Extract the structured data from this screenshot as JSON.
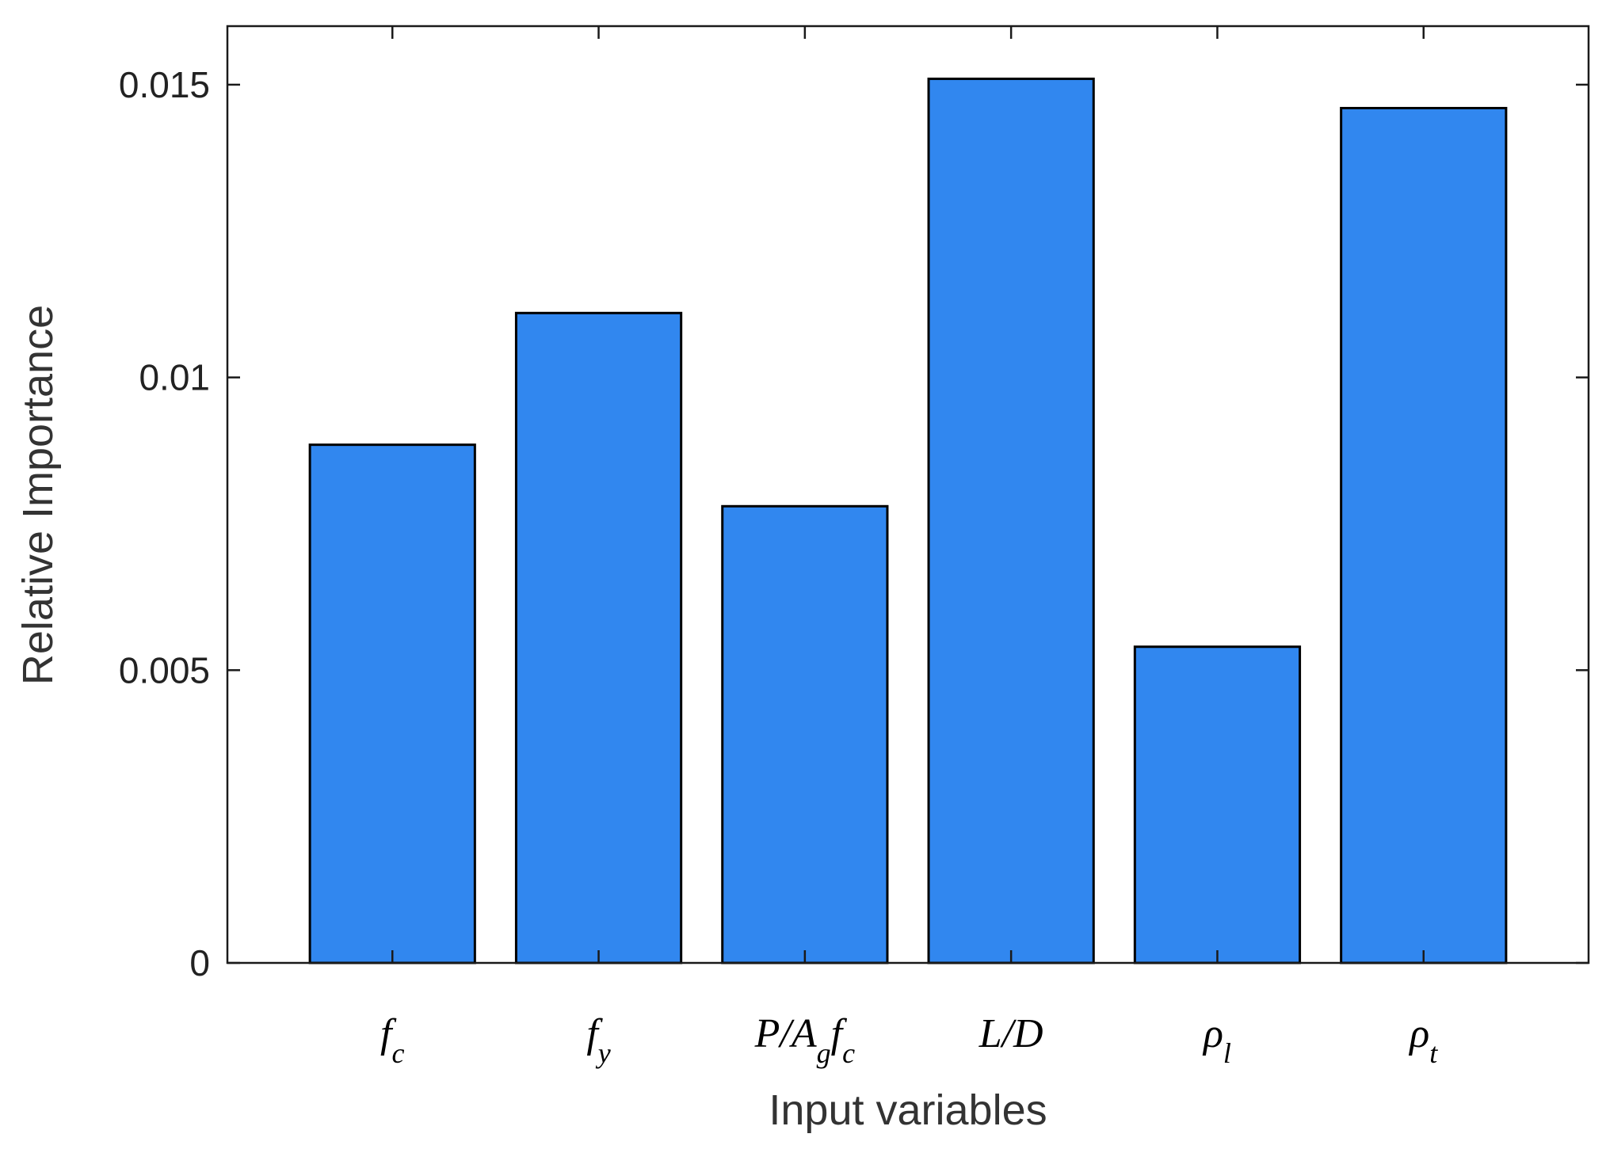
{
  "chart_data": {
    "type": "bar",
    "categories": [
      {
        "main": "f",
        "sub": "c"
      },
      {
        "main": "f",
        "sub": "y"
      },
      {
        "main": "P/A",
        "sub": "g",
        "tail": "f",
        "tail_sub": "c"
      },
      {
        "main": "L/D",
        "sub": ""
      },
      {
        "main": "ρ",
        "sub": "l"
      },
      {
        "main": "ρ",
        "sub": "t"
      }
    ],
    "values": [
      0.00885,
      0.0111,
      0.0078,
      0.0151,
      0.0054,
      0.0146
    ],
    "title": "",
    "xlabel": "Input variables",
    "ylabel": "Relative Importance",
    "ylim": [
      0,
      0.016
    ],
    "yticks": [
      0,
      0.005,
      0.01,
      0.015
    ],
    "ytick_labels": [
      "0",
      "0.005",
      "0.01",
      "0.015"
    ],
    "grid": false,
    "bar_color": "#3187EF",
    "bar_edge_color": "#000000"
  }
}
